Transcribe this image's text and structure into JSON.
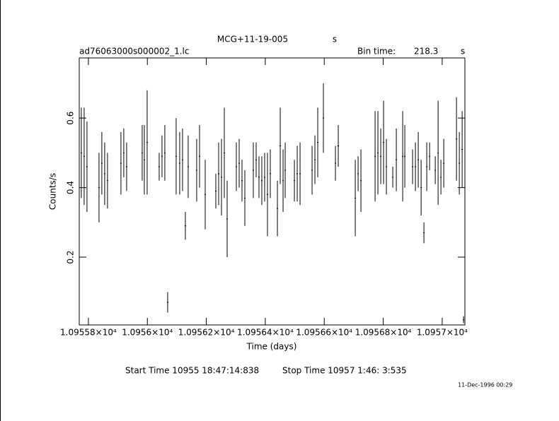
{
  "chart_data": {
    "type": "errorbar",
    "title": "MCG+11-19-005",
    "title_unit": "s",
    "subtitle": "ad76063000s000002_1.lc",
    "bin_time_label": "Bin time:",
    "bin_time": 218.3,
    "bin_time_unit": "s",
    "x_label": "Time (days)",
    "y_label": "Counts/s",
    "start_time": "Start Time 10955 18:47:14:838",
    "stop_time": "Stop Time 10957  1:46: 3:535",
    "footer": "11-Dec-1996 00:29",
    "color": "#000000",
    "xlim": [
      10955.769,
      10957.077
    ],
    "ylim": [
      0.005,
      0.773
    ],
    "xticks": [
      {
        "value": 10955.8,
        "label": "1.09558×10⁴"
      },
      {
        "value": 10956.0,
        "label": "1.0956×10⁴"
      },
      {
        "value": 10956.2,
        "label": "1.09562×10⁴"
      },
      {
        "value": 10956.4,
        "label": "1.09564×10⁴"
      },
      {
        "value": 10956.6,
        "label": "1.09566×10⁴"
      },
      {
        "value": 10956.8,
        "label": "1.09568×10⁴"
      },
      {
        "value": 10957.0,
        "label": "1.0957×10⁴"
      }
    ],
    "yticks": [
      0.2,
      0.4,
      0.6
    ],
    "x": [
      10955.776,
      10955.7856,
      10955.7952,
      10955.836,
      10955.8456,
      10955.8552,
      10955.8648,
      10955.9104,
      10955.92,
      10955.9297,
      10955.9825,
      10955.9897,
      10955.9993,
      10956.0401,
      10956.0497,
      10956.0593,
      10956.0689,
      10956.0977,
      10956.1097,
      10956.1193,
      10956.1289,
      10956.1385,
      10956.1673,
      10956.177,
      10956.1962,
      10956.2322,
      10956.2418,
      10956.2514,
      10956.261,
      10956.2706,
      10956.3018,
      10956.3114,
      10956.321,
      10956.3306,
      10956.3594,
      10956.369,
      10956.3786,
      10956.3882,
      10956.3978,
      10956.4074,
      10956.417,
      10956.4411,
      10956.4507,
      10956.4603,
      10956.4675,
      10956.4987,
      10956.5083,
      10956.5179,
      10956.5587,
      10956.5683,
      10956.5779,
      10956.5971,
      10956.6379,
      10956.6475,
      10956.7052,
      10956.7148,
      10956.7244,
      10956.7724,
      10956.782,
      10956.7916,
      10956.8012,
      10956.8108,
      10956.8324,
      10956.8444,
      10956.866,
      10956.8732,
      10956.8996,
      10956.9092,
      10956.9188,
      10956.9285,
      10956.9381,
      10956.9477,
      10956.9573,
      10956.9765,
      10956.9861,
      10956.9957,
      10957.0053,
      10957.0485,
      10957.0581,
      10957.0677,
      10957.0725
    ],
    "values": [
      0.5,
      0.49,
      0.46,
      0.4,
      0.47,
      0.44,
      0.42,
      0.47,
      0.5,
      0.46,
      0.5,
      0.48,
      0.53,
      0.46,
      0.49,
      0.5,
      0.07,
      0.49,
      0.47,
      0.48,
      0.29,
      0.46,
      0.45,
      0.49,
      0.38,
      0.39,
      0.44,
      0.43,
      0.5,
      0.31,
      0.46,
      0.47,
      0.42,
      0.37,
      0.45,
      0.48,
      0.43,
      0.42,
      0.43,
      0.38,
      0.44,
      0.34,
      0.52,
      0.42,
      0.45,
      0.42,
      0.44,
      0.44,
      0.45,
      0.48,
      0.53,
      0.6,
      0.47,
      0.52,
      0.37,
      0.44,
      0.42,
      0.49,
      0.5,
      0.49,
      0.53,
      0.46,
      0.43,
      0.48,
      0.49,
      0.49,
      0.46,
      0.46,
      0.48,
      0.4,
      0.27,
      0.46,
      0.49,
      0.45,
      0.5,
      0.43,
      0.47,
      0.54,
      0.47,
      0.51,
      0.02
    ],
    "errors": [
      0.13,
      0.14,
      0.13,
      0.1,
      0.09,
      0.09,
      0.08,
      0.09,
      0.07,
      0.07,
      0.08,
      0.1,
      0.15,
      0.04,
      0.06,
      0.08,
      0.03,
      0.11,
      0.09,
      0.09,
      0.04,
      0.09,
      0.09,
      0.09,
      0.1,
      0.05,
      0.09,
      0.11,
      0.13,
      0.11,
      0.07,
      0.07,
      0.06,
      0.08,
      0.08,
      0.05,
      0.06,
      0.07,
      0.07,
      0.12,
      0.07,
      0.08,
      0.11,
      0.09,
      0.08,
      0.06,
      0.08,
      0.09,
      0.07,
      0.07,
      0.1,
      0.1,
      0.05,
      0.06,
      0.11,
      0.05,
      0.09,
      0.13,
      0.12,
      0.08,
      0.12,
      0.08,
      0.03,
      0.09,
      0.13,
      0.09,
      0.05,
      0.07,
      0.08,
      0.08,
      0.03,
      0.07,
      0.04,
      0.04,
      0.15,
      0.05,
      0.07,
      0.12,
      0.09,
      0.11,
      0.01
    ]
  }
}
